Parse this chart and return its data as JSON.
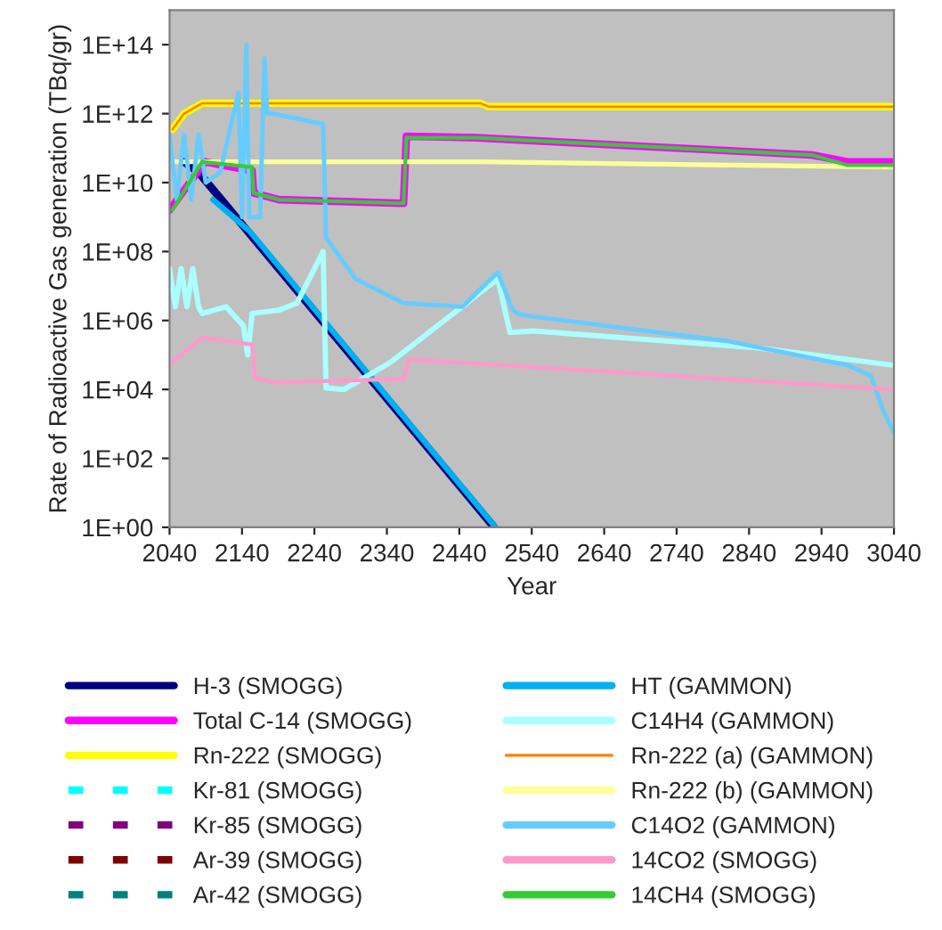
{
  "chart_data": {
    "type": "line",
    "xlabel": "Year",
    "ylabel": "Rate of Radioactive Gas generation (TBq/gr)",
    "log": "y",
    "grid": false,
    "legend": "bottom",
    "marker": "none",
    "xlim": [
      2040,
      3040
    ],
    "xticks": [
      2040,
      2140,
      2240,
      2340,
      2440,
      2540,
      2640,
      2740,
      2840,
      2940,
      3040
    ],
    "ylim": [
      1,
      1000000000000000.0
    ],
    "yticks": [
      {
        "value": 1,
        "label": "1E+00"
      },
      {
        "value": 100,
        "label": "1E+02"
      },
      {
        "value": 10000,
        "label": "1E+04"
      },
      {
        "value": 1000000,
        "label": "1E+06"
      },
      {
        "value": 100000000,
        "label": "1E+08"
      },
      {
        "value": 10000000000,
        "label": "1E+10"
      },
      {
        "value": 1000000000000,
        "label": "1E+12"
      },
      {
        "value": 100000000000000,
        "label": "1E+14"
      }
    ],
    "series": [
      {
        "name": "H-3 (SMOGG)",
        "color": "#000080",
        "line_style": "solid",
        "x": [
          2060,
          2080,
          2488
        ],
        "values": [
          40000000000.0,
          20000000000.0,
          1
        ]
      },
      {
        "name": "Total C-14 (SMOGG)",
        "color": "#ff00ff",
        "line_style": "solid",
        "x": [
          2040,
          2089,
          2154,
          2156,
          2191,
          2363,
          2367,
          2464,
          2927,
          2976,
          3040
        ],
        "values": [
          1600000000.0,
          40000000000.0,
          22000000000.0,
          5000000000.0,
          3200000000.0,
          2500000000.0,
          220000000000.0,
          200000000000.0,
          63000000000.0,
          40000000000.0,
          40000000000.0
        ]
      },
      {
        "name": "Rn-222 (SMOGG)",
        "color": "#ffff00",
        "line_style": "solid",
        "x": [
          2044,
          2060,
          2085,
          2469,
          2480,
          3040
        ],
        "values": [
          350000000000.0,
          1000000000000.0,
          2000000000000.0,
          2000000000000.0,
          1600000000000.0,
          1600000000000.0
        ]
      },
      {
        "name": "Kr-81 (SMOGG)",
        "color": "#00ffff",
        "line_style": "dashed"
      },
      {
        "name": "Kr-85 (SMOGG)",
        "color": "#800080",
        "line_style": "dashed"
      },
      {
        "name": "Ar-39 (SMOGG)",
        "color": "#800000",
        "line_style": "dashed"
      },
      {
        "name": "Ar-42 (SMOGG)",
        "color": "#008080",
        "line_style": "dashed"
      },
      {
        "name": "HT (GAMMON)",
        "color": "#00b0f0",
        "line_style": "solid",
        "x": [
          2100,
          2150,
          2490
        ],
        "values": [
          3200000000.0,
          400000000.0,
          1
        ]
      },
      {
        "name": "C14H4 (GAMMON)",
        "color": "#aaffff",
        "line_style": "solid",
        "x": [
          2040,
          2048,
          2056,
          2064,
          2072,
          2080,
          2085,
          2118,
          2142,
          2148,
          2154,
          2191,
          2216,
          2252,
          2256,
          2281,
          2346,
          2493,
          2510,
          2542,
          2853,
          3040
        ],
        "values": [
          32000000.0,
          2500000.0,
          32000000.0,
          2500000.0,
          32000000.0,
          2500000.0,
          1600000.0,
          2500000.0,
          700000.0,
          100000.0,
          1600000.0,
          2000000.0,
          3200000.0,
          100000000.0,
          11000.0,
          10000.0,
          63000.0,
          16000000.0,
          450000.0,
          500000.0,
          160000.0,
          50000.0
        ]
      },
      {
        "name": "Rn-222 (a) (GAMMON)",
        "color": "#ff8000",
        "line_style": "solid",
        "x": [
          2044,
          2060,
          2085,
          2469,
          2480,
          3040
        ],
        "values": [
          350000000000.0,
          1000000000000.0,
          2000000000000.0,
          2000000000000.0,
          1600000000000.0,
          1600000000000.0
        ]
      },
      {
        "name": "Rn-222 (b) (GAMMON)",
        "color": "#ffff99",
        "line_style": "solid",
        "x": [
          2040,
          2469,
          3040
        ],
        "values": [
          40000000000.0,
          40000000000.0,
          28000000000.0
        ]
      },
      {
        "name": "C14O2 (GAMMON)",
        "color": "#66ccff",
        "line_style": "solid",
        "x": [
          2040,
          2050,
          2060,
          2070,
          2080,
          2090,
          2110,
          2135,
          2140,
          2146,
          2150,
          2165,
          2171,
          2175,
          2183,
          2252,
          2256,
          2297,
          2363,
          2444,
          2493,
          2514,
          2520,
          2542,
          2812,
          2976,
          3008,
          3025,
          3040
        ],
        "values": [
          250000000000.0,
          3200000000.0,
          250000000000.0,
          3200000000.0,
          250000000000.0,
          10000000000.0,
          20000000000.0,
          4000000000000.0,
          1000000000.0,
          100000000000000.0,
          1000000000.0,
          1000000000.0,
          40000000000000.0,
          1000000000000.0,
          1000000000000.0,
          500000000000.0,
          250000000.0,
          16000000.0,
          3200000.0,
          2500000.0,
          25000000.0,
          2000000.0,
          1600000.0,
          1300000.0,
          250000.0,
          50000.0,
          25000.0,
          2500.0,
          560
        ]
      },
      {
        "name": "14CO2 (SMOGG)",
        "color": "#ff99cc",
        "line_style": "solid",
        "x": [
          2044,
          2085,
          2154,
          2158,
          2183,
          2363,
          2371,
          3040
        ],
        "values": [
          63000.0,
          320000.0,
          200000.0,
          22000.0,
          16000.0,
          20000.0,
          74000.0,
          10000.0
        ]
      },
      {
        "name": "14CH4 (SMOGG)",
        "color": "#33cc33",
        "line_style": "solid",
        "x": [
          2044,
          2085,
          2154,
          2156,
          2191,
          2363,
          2367,
          2464,
          2927,
          2976,
          3040
        ],
        "values": [
          1600000000.0,
          40000000000.0,
          28000000000.0,
          5000000000.0,
          3200000000.0,
          2500000000.0,
          200000000000.0,
          200000000000.0,
          63000000000.0,
          32000000000.0,
          32000000000.0
        ]
      }
    ]
  }
}
